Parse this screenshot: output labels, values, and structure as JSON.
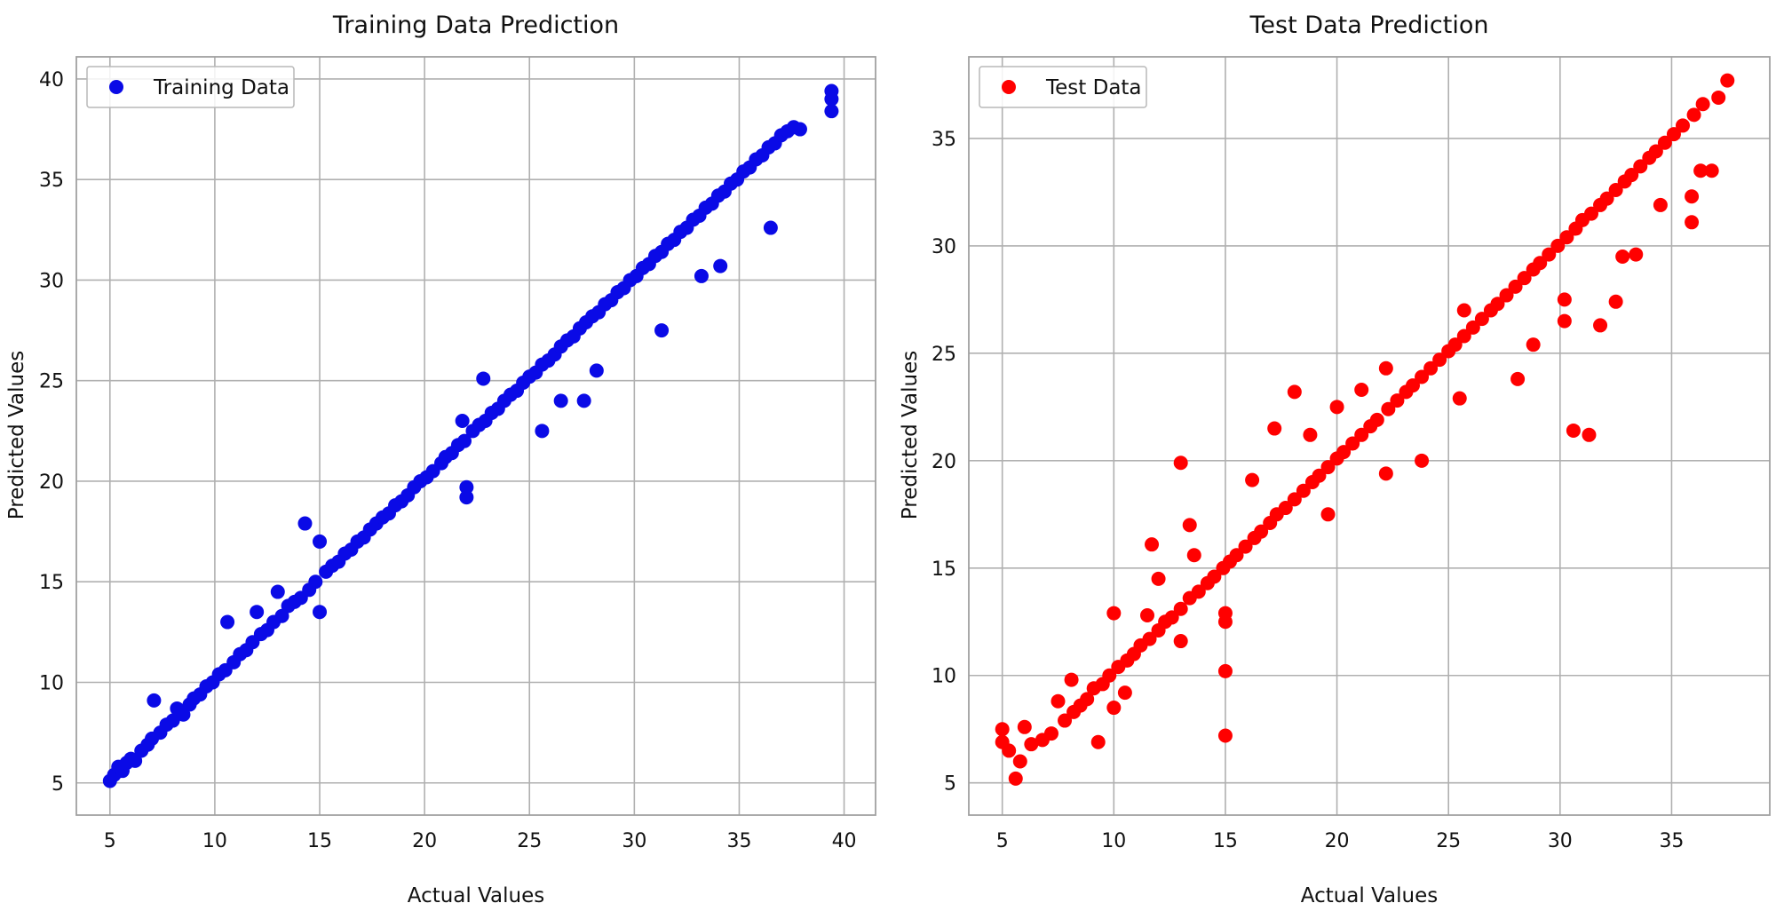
{
  "chart_data": [
    {
      "type": "scatter",
      "title": "Training Data Prediction",
      "xlabel": "Actual Values",
      "ylabel": "Predicted Values",
      "xlim": [
        3.4,
        41.5
      ],
      "ylim": [
        3.4,
        41.1
      ],
      "xticks": [
        5,
        10,
        15,
        20,
        25,
        30,
        35,
        40
      ],
      "yticks": [
        5,
        10,
        15,
        20,
        25,
        30,
        35,
        40
      ],
      "grid": true,
      "legend": "upper-left",
      "series": [
        {
          "name": "Training Data",
          "color": "#0a0ae6",
          "points": [
            [
              5.0,
              5.1
            ],
            [
              5.2,
              5.4
            ],
            [
              5.4,
              5.8
            ],
            [
              5.6,
              5.6
            ],
            [
              5.8,
              6.0
            ],
            [
              6.0,
              6.2
            ],
            [
              6.2,
              6.1
            ],
            [
              6.5,
              6.6
            ],
            [
              6.8,
              6.9
            ],
            [
              7.0,
              7.2
            ],
            [
              7.1,
              9.1
            ],
            [
              7.4,
              7.5
            ],
            [
              7.7,
              7.9
            ],
            [
              8.0,
              8.1
            ],
            [
              8.2,
              8.7
            ],
            [
              8.5,
              8.4
            ],
            [
              8.8,
              8.9
            ],
            [
              9.0,
              9.2
            ],
            [
              9.3,
              9.4
            ],
            [
              9.6,
              9.8
            ],
            [
              9.9,
              10.0
            ],
            [
              10.2,
              10.4
            ],
            [
              10.5,
              10.6
            ],
            [
              10.6,
              13.0
            ],
            [
              10.9,
              11.0
            ],
            [
              11.2,
              11.4
            ],
            [
              11.5,
              11.6
            ],
            [
              11.8,
              12.0
            ],
            [
              12.0,
              13.5
            ],
            [
              12.2,
              12.4
            ],
            [
              12.5,
              12.6
            ],
            [
              12.8,
              13.0
            ],
            [
              13.0,
              14.5
            ],
            [
              13.2,
              13.3
            ],
            [
              13.5,
              13.8
            ],
            [
              13.8,
              14.0
            ],
            [
              14.1,
              14.2
            ],
            [
              14.3,
              17.9
            ],
            [
              14.5,
              14.6
            ],
            [
              14.8,
              15.0
            ],
            [
              15.0,
              13.5
            ],
            [
              15.0,
              17.0
            ],
            [
              15.3,
              15.5
            ],
            [
              15.6,
              15.8
            ],
            [
              15.9,
              16.0
            ],
            [
              16.2,
              16.4
            ],
            [
              16.5,
              16.6
            ],
            [
              16.8,
              17.0
            ],
            [
              17.1,
              17.2
            ],
            [
              17.4,
              17.6
            ],
            [
              17.7,
              17.9
            ],
            [
              18.0,
              18.2
            ],
            [
              18.3,
              18.4
            ],
            [
              18.6,
              18.8
            ],
            [
              18.9,
              19.0
            ],
            [
              19.2,
              19.3
            ],
            [
              19.5,
              19.7
            ],
            [
              19.8,
              20.0
            ],
            [
              20.1,
              20.2
            ],
            [
              20.4,
              20.5
            ],
            [
              20.8,
              20.9
            ],
            [
              21.0,
              21.2
            ],
            [
              21.3,
              21.4
            ],
            [
              21.6,
              21.8
            ],
            [
              21.8,
              23.0
            ],
            [
              21.9,
              22.0
            ],
            [
              22.0,
              19.2
            ],
            [
              22.0,
              19.7
            ],
            [
              22.3,
              22.5
            ],
            [
              22.6,
              22.8
            ],
            [
              22.8,
              25.1
            ],
            [
              22.9,
              23.0
            ],
            [
              23.2,
              23.4
            ],
            [
              23.5,
              23.6
            ],
            [
              23.8,
              24.0
            ],
            [
              24.1,
              24.3
            ],
            [
              24.4,
              24.5
            ],
            [
              24.7,
              24.9
            ],
            [
              25.0,
              25.2
            ],
            [
              25.3,
              25.4
            ],
            [
              25.6,
              25.8
            ],
            [
              25.6,
              22.5
            ],
            [
              25.9,
              26.0
            ],
            [
              26.2,
              26.3
            ],
            [
              26.5,
              24.0
            ],
            [
              26.5,
              26.7
            ],
            [
              26.8,
              27.0
            ],
            [
              27.1,
              27.2
            ],
            [
              27.4,
              27.6
            ],
            [
              27.6,
              24.0
            ],
            [
              27.7,
              27.9
            ],
            [
              28.0,
              28.2
            ],
            [
              28.2,
              25.5
            ],
            [
              28.3,
              28.4
            ],
            [
              28.6,
              28.8
            ],
            [
              28.9,
              29.0
            ],
            [
              29.2,
              29.4
            ],
            [
              29.5,
              29.6
            ],
            [
              29.8,
              30.0
            ],
            [
              30.1,
              30.2
            ],
            [
              30.4,
              30.6
            ],
            [
              30.7,
              30.8
            ],
            [
              31.0,
              31.2
            ],
            [
              31.3,
              27.5
            ],
            [
              31.3,
              31.4
            ],
            [
              31.6,
              31.8
            ],
            [
              31.9,
              32.0
            ],
            [
              32.2,
              32.4
            ],
            [
              32.5,
              32.6
            ],
            [
              32.8,
              33.0
            ],
            [
              33.1,
              33.2
            ],
            [
              33.2,
              30.2
            ],
            [
              33.4,
              33.6
            ],
            [
              33.7,
              33.8
            ],
            [
              34.0,
              34.2
            ],
            [
              34.1,
              30.7
            ],
            [
              34.3,
              34.4
            ],
            [
              34.6,
              34.8
            ],
            [
              34.9,
              35.0
            ],
            [
              35.2,
              35.4
            ],
            [
              35.5,
              35.6
            ],
            [
              35.8,
              36.0
            ],
            [
              36.1,
              36.2
            ],
            [
              36.4,
              36.6
            ],
            [
              36.5,
              32.6
            ],
            [
              36.7,
              36.8
            ],
            [
              37.0,
              37.2
            ],
            [
              37.3,
              37.4
            ],
            [
              37.6,
              37.6
            ],
            [
              37.9,
              37.5
            ],
            [
              39.4,
              39.4
            ],
            [
              39.4,
              39.0
            ],
            [
              39.4,
              38.4
            ]
          ]
        }
      ]
    },
    {
      "type": "scatter",
      "title": "Test Data Prediction",
      "xlabel": "Actual Values",
      "ylabel": "Predicted Values",
      "xlim": [
        3.5,
        39.4
      ],
      "ylim": [
        3.5,
        38.8
      ],
      "xticks": [
        5,
        10,
        15,
        20,
        25,
        30,
        35
      ],
      "yticks": [
        5,
        10,
        15,
        20,
        25,
        30,
        35
      ],
      "grid": true,
      "legend": "upper-left",
      "series": [
        {
          "name": "Test Data",
          "color": "#ff0000",
          "points": [
            [
              5.0,
              7.5
            ],
            [
              5.0,
              6.9
            ],
            [
              5.3,
              6.5
            ],
            [
              5.6,
              5.2
            ],
            [
              5.8,
              6.0
            ],
            [
              6.0,
              7.6
            ],
            [
              6.3,
              6.8
            ],
            [
              6.8,
              7.0
            ],
            [
              7.2,
              7.3
            ],
            [
              7.5,
              8.8
            ],
            [
              7.8,
              7.9
            ],
            [
              8.1,
              9.8
            ],
            [
              8.2,
              8.3
            ],
            [
              8.5,
              8.6
            ],
            [
              8.8,
              8.9
            ],
            [
              9.1,
              9.4
            ],
            [
              9.3,
              6.9
            ],
            [
              9.5,
              9.6
            ],
            [
              9.8,
              10.0
            ],
            [
              10.0,
              12.9
            ],
            [
              10.0,
              8.5
            ],
            [
              10.2,
              10.4
            ],
            [
              10.5,
              9.2
            ],
            [
              10.6,
              10.7
            ],
            [
              10.9,
              11.0
            ],
            [
              11.2,
              11.4
            ],
            [
              11.5,
              12.8
            ],
            [
              11.6,
              11.7
            ],
            [
              11.7,
              16.1
            ],
            [
              12.0,
              14.5
            ],
            [
              12.0,
              12.1
            ],
            [
              12.3,
              12.5
            ],
            [
              12.6,
              12.7
            ],
            [
              13.0,
              19.9
            ],
            [
              13.0,
              13.1
            ],
            [
              13.0,
              11.6
            ],
            [
              13.4,
              17.0
            ],
            [
              13.4,
              13.6
            ],
            [
              13.6,
              15.6
            ],
            [
              13.8,
              13.9
            ],
            [
              14.2,
              14.3
            ],
            [
              14.5,
              14.6
            ],
            [
              14.9,
              15.0
            ],
            [
              15.0,
              7.2
            ],
            [
              15.0,
              10.2
            ],
            [
              15.0,
              12.5
            ],
            [
              15.0,
              12.9
            ],
            [
              15.2,
              15.3
            ],
            [
              15.5,
              15.6
            ],
            [
              15.9,
              16.0
            ],
            [
              16.2,
              19.1
            ],
            [
              16.3,
              16.4
            ],
            [
              16.6,
              16.7
            ],
            [
              17.0,
              17.1
            ],
            [
              17.2,
              21.5
            ],
            [
              17.3,
              17.5
            ],
            [
              17.7,
              17.8
            ],
            [
              18.1,
              23.2
            ],
            [
              18.1,
              18.2
            ],
            [
              18.5,
              18.6
            ],
            [
              18.8,
              21.2
            ],
            [
              18.9,
              19.0
            ],
            [
              19.2,
              19.3
            ],
            [
              19.6,
              17.5
            ],
            [
              19.6,
              19.7
            ],
            [
              20.0,
              22.5
            ],
            [
              20.0,
              20.1
            ],
            [
              20.3,
              20.4
            ],
            [
              20.7,
              20.8
            ],
            [
              21.1,
              23.3
            ],
            [
              21.1,
              21.2
            ],
            [
              21.5,
              21.6
            ],
            [
              21.8,
              21.9
            ],
            [
              22.2,
              19.4
            ],
            [
              22.2,
              24.3
            ],
            [
              22.3,
              22.4
            ],
            [
              22.7,
              22.8
            ],
            [
              23.1,
              23.2
            ],
            [
              23.4,
              23.5
            ],
            [
              23.8,
              20.0
            ],
            [
              23.8,
              23.9
            ],
            [
              24.2,
              24.3
            ],
            [
              24.6,
              24.7
            ],
            [
              25.0,
              25.1
            ],
            [
              25.3,
              25.4
            ],
            [
              25.5,
              22.9
            ],
            [
              25.7,
              27.0
            ],
            [
              25.7,
              25.8
            ],
            [
              26.1,
              26.2
            ],
            [
              26.5,
              26.6
            ],
            [
              26.9,
              27.0
            ],
            [
              27.2,
              27.3
            ],
            [
              27.6,
              27.7
            ],
            [
              28.0,
              28.1
            ],
            [
              28.1,
              23.8
            ],
            [
              28.4,
              28.5
            ],
            [
              28.8,
              25.4
            ],
            [
              28.8,
              28.9
            ],
            [
              29.1,
              29.2
            ],
            [
              29.5,
              29.6
            ],
            [
              29.9,
              30.0
            ],
            [
              30.2,
              26.5
            ],
            [
              30.2,
              27.5
            ],
            [
              30.3,
              30.4
            ],
            [
              30.6,
              21.4
            ],
            [
              30.7,
              30.8
            ],
            [
              31.0,
              31.2
            ],
            [
              31.3,
              21.2
            ],
            [
              31.4,
              31.5
            ],
            [
              31.8,
              26.3
            ],
            [
              31.8,
              31.9
            ],
            [
              32.1,
              32.2
            ],
            [
              32.5,
              27.4
            ],
            [
              32.5,
              32.6
            ],
            [
              32.8,
              29.5
            ],
            [
              32.9,
              33.0
            ],
            [
              33.2,
              33.3
            ],
            [
              33.4,
              29.6
            ],
            [
              33.6,
              33.7
            ],
            [
              34.0,
              34.1
            ],
            [
              34.3,
              34.4
            ],
            [
              34.5,
              31.9
            ],
            [
              34.7,
              34.8
            ],
            [
              35.1,
              35.2
            ],
            [
              35.5,
              35.6
            ],
            [
              35.9,
              31.1
            ],
            [
              35.9,
              32.3
            ],
            [
              36.0,
              36.1
            ],
            [
              36.3,
              33.5
            ],
            [
              36.4,
              36.6
            ],
            [
              36.8,
              33.5
            ],
            [
              37.1,
              36.9
            ],
            [
              37.5,
              37.7
            ]
          ]
        }
      ]
    }
  ]
}
